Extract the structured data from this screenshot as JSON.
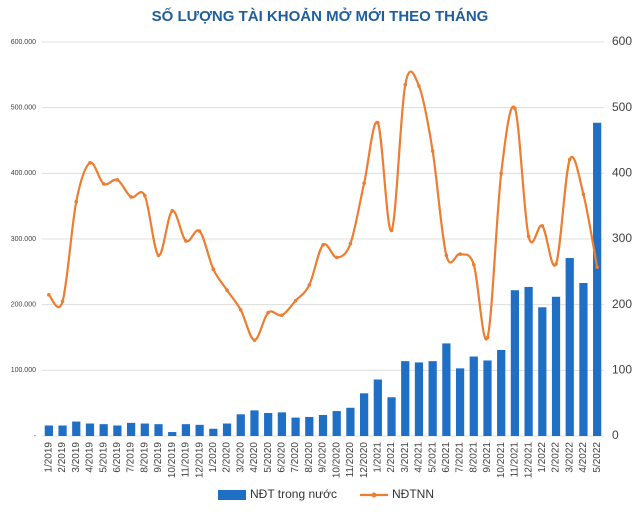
{
  "chart_data": {
    "type": "bar_line",
    "title": "SỐ LƯỢNG TÀI KHOẢN MỞ MỚI THEO THÁNG",
    "categories": [
      "1/2019",
      "2/2019",
      "3/2019",
      "4/2019",
      "5/2019",
      "6/2019",
      "7/2019",
      "8/2019",
      "9/2019",
      "10/2019",
      "11/2019",
      "12/2019",
      "1/2020",
      "2/2020",
      "3/2020",
      "4/2020",
      "5/2020",
      "6/2020",
      "7/2020",
      "8/2020",
      "9/2020",
      "10/2020",
      "11/2020",
      "12/2020",
      "1/2021",
      "2/2021",
      "3/2021",
      "4/2021",
      "5/2021",
      "6/2021",
      "7/2021",
      "8/2021",
      "9/2021",
      "10/2021",
      "11/2021",
      "12/2021",
      "1/2022",
      "2/2022",
      "3/2022",
      "4/2022",
      "5/2022"
    ],
    "series": [
      {
        "name": "NĐT trong nước",
        "type": "bar",
        "color": "#1f6fc5",
        "values": [
          16000,
          16000,
          22000,
          19000,
          18000,
          16000,
          20000,
          19000,
          18000,
          6000,
          18000,
          17000,
          11000,
          19000,
          33000,
          39000,
          35000,
          36000,
          28000,
          29000,
          32000,
          38000,
          43000,
          65000,
          86000,
          59000,
          114000,
          112000,
          114000,
          141000,
          103000,
          121000,
          115000,
          131000,
          222000,
          227000,
          196000,
          212000,
          271000,
          233000,
          477000
        ]
      },
      {
        "name": "NĐTNN",
        "type": "line",
        "axis": "y2",
        "color": "#ed7d31",
        "values": [
          215,
          205,
          357,
          416,
          384,
          390,
          364,
          366,
          275,
          343,
          297,
          312,
          254,
          222,
          192,
          146,
          188,
          184,
          206,
          230,
          291,
          272,
          293,
          385,
          477,
          313,
          535,
          533,
          434,
          275,
          277,
          261,
          150,
          400,
          499,
          304,
          320,
          262,
          421,
          368,
          257
        ]
      }
    ],
    "ylim": [
      0,
      600000
    ],
    "yticks": [
      {
        "value": 0,
        "label": "-"
      },
      {
        "value": 100000,
        "label": "100.000"
      },
      {
        "value": 200000,
        "label": "200.000"
      },
      {
        "value": 300000,
        "label": "300.000"
      },
      {
        "value": 400000,
        "label": "400.000"
      },
      {
        "value": 500000,
        "label": "500.000"
      },
      {
        "value": 600000,
        "label": "600.000"
      }
    ],
    "y2lim": [
      0,
      600
    ],
    "y2ticks": [
      0,
      100,
      200,
      300,
      400,
      500,
      600
    ],
    "grid": true
  }
}
